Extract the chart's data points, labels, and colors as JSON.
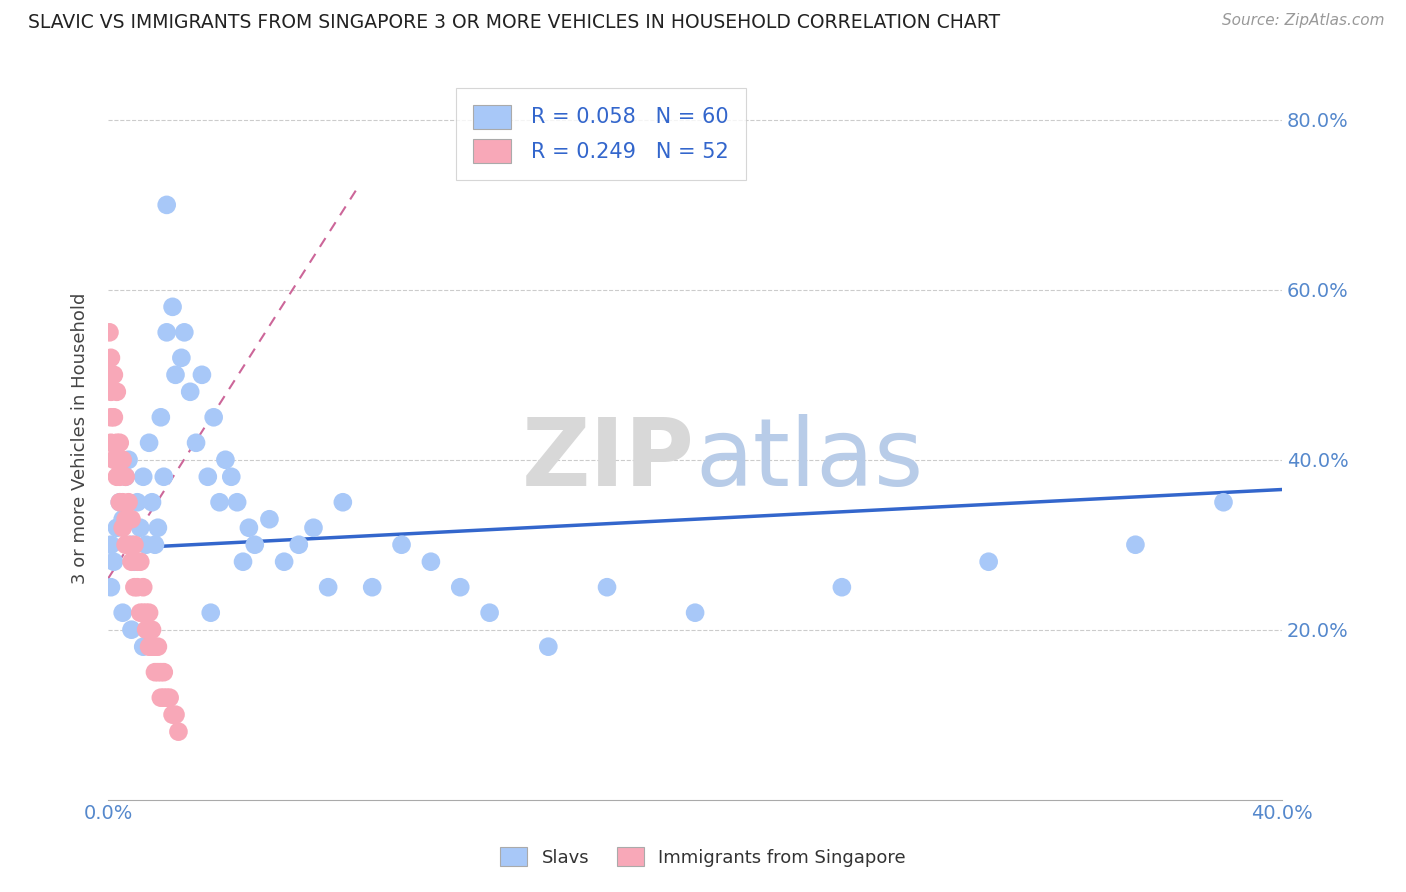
{
  "title": "SLAVIC VS IMMIGRANTS FROM SINGAPORE 3 OR MORE VEHICLES IN HOUSEHOLD CORRELATION CHART",
  "source": "Source: ZipAtlas.com",
  "ylabel": "3 or more Vehicles in Household",
  "color_slavic": "#a8c8f8",
  "color_singapore": "#f8a8b8",
  "trendline_slavic_color": "#3366cc",
  "trendline_singapore_color": "#cc6699",
  "x_lim": [
    0.0,
    0.4
  ],
  "y_lim": [
    0.0,
    0.85
  ],
  "slavic_x": [
    0.001,
    0.001,
    0.002,
    0.003,
    0.004,
    0.005,
    0.006,
    0.007,
    0.008,
    0.009,
    0.01,
    0.011,
    0.012,
    0.013,
    0.014,
    0.015,
    0.016,
    0.017,
    0.018,
    0.019,
    0.02,
    0.022,
    0.023,
    0.025,
    0.026,
    0.028,
    0.03,
    0.032,
    0.034,
    0.036,
    0.038,
    0.04,
    0.042,
    0.044,
    0.046,
    0.048,
    0.05,
    0.055,
    0.06,
    0.065,
    0.07,
    0.075,
    0.08,
    0.09,
    0.1,
    0.11,
    0.12,
    0.13,
    0.15,
    0.17,
    0.2,
    0.25,
    0.3,
    0.35,
    0.38,
    0.005,
    0.008,
    0.012,
    0.02,
    0.035
  ],
  "slavic_y": [
    0.3,
    0.25,
    0.28,
    0.32,
    0.35,
    0.33,
    0.38,
    0.4,
    0.3,
    0.28,
    0.35,
    0.32,
    0.38,
    0.3,
    0.42,
    0.35,
    0.3,
    0.32,
    0.45,
    0.38,
    0.55,
    0.58,
    0.5,
    0.52,
    0.55,
    0.48,
    0.42,
    0.5,
    0.38,
    0.45,
    0.35,
    0.4,
    0.38,
    0.35,
    0.28,
    0.32,
    0.3,
    0.33,
    0.28,
    0.3,
    0.32,
    0.25,
    0.35,
    0.25,
    0.3,
    0.28,
    0.25,
    0.22,
    0.18,
    0.25,
    0.22,
    0.25,
    0.28,
    0.3,
    0.35,
    0.22,
    0.2,
    0.18,
    0.7,
    0.22
  ],
  "singapore_x": [
    0.0005,
    0.0005,
    0.001,
    0.001,
    0.001,
    0.001,
    0.002,
    0.002,
    0.002,
    0.003,
    0.003,
    0.003,
    0.004,
    0.004,
    0.004,
    0.005,
    0.005,
    0.005,
    0.006,
    0.006,
    0.006,
    0.007,
    0.007,
    0.008,
    0.008,
    0.009,
    0.009,
    0.01,
    0.01,
    0.011,
    0.011,
    0.012,
    0.012,
    0.013,
    0.013,
    0.014,
    0.014,
    0.015,
    0.015,
    0.016,
    0.016,
    0.017,
    0.017,
    0.018,
    0.018,
    0.019,
    0.019,
    0.02,
    0.021,
    0.022,
    0.023,
    0.024
  ],
  "singapore_y": [
    0.5,
    0.55,
    0.48,
    0.42,
    0.52,
    0.45,
    0.5,
    0.45,
    0.4,
    0.48,
    0.42,
    0.38,
    0.42,
    0.38,
    0.35,
    0.4,
    0.35,
    0.32,
    0.38,
    0.33,
    0.3,
    0.35,
    0.3,
    0.33,
    0.28,
    0.3,
    0.25,
    0.28,
    0.25,
    0.28,
    0.22,
    0.25,
    0.22,
    0.2,
    0.22,
    0.22,
    0.18,
    0.2,
    0.18,
    0.18,
    0.15,
    0.18,
    0.15,
    0.15,
    0.12,
    0.15,
    0.12,
    0.12,
    0.12,
    0.1,
    0.1,
    0.08
  ]
}
